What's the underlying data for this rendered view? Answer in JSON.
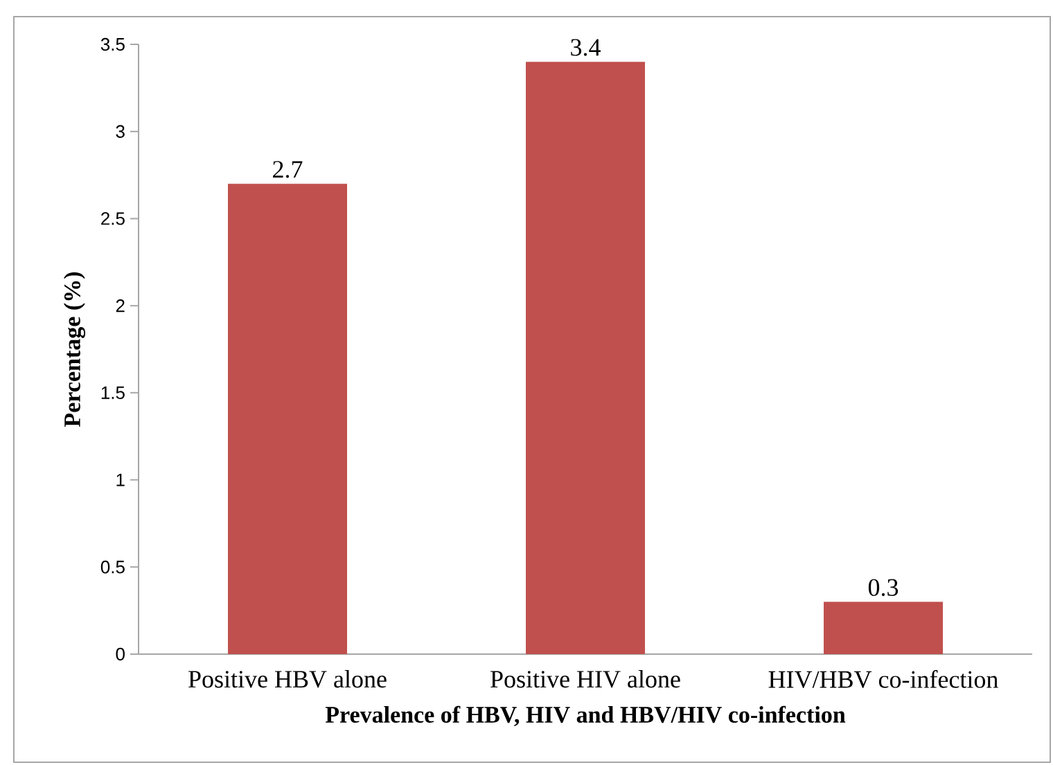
{
  "chart_data": {
    "type": "bar",
    "xlabel": "**Prevalence of HBV, HIV and HBV/HIV co-infection**",
    "ylabel": "**Percentage (%)**",
    "categories": [
      "Positive HBV alone",
      "Positive HIV alone",
      "HIV/HBV co-infection"
    ],
    "values": [
      2.7,
      3.4,
      0.3
    ],
    "data_labels": true,
    "color": "#c0504d",
    "ylim": [
      0,
      3.5
    ],
    "yticks": [
      0,
      0.5,
      1,
      1.5,
      2,
      2.5,
      3,
      3.5
    ]
  }
}
